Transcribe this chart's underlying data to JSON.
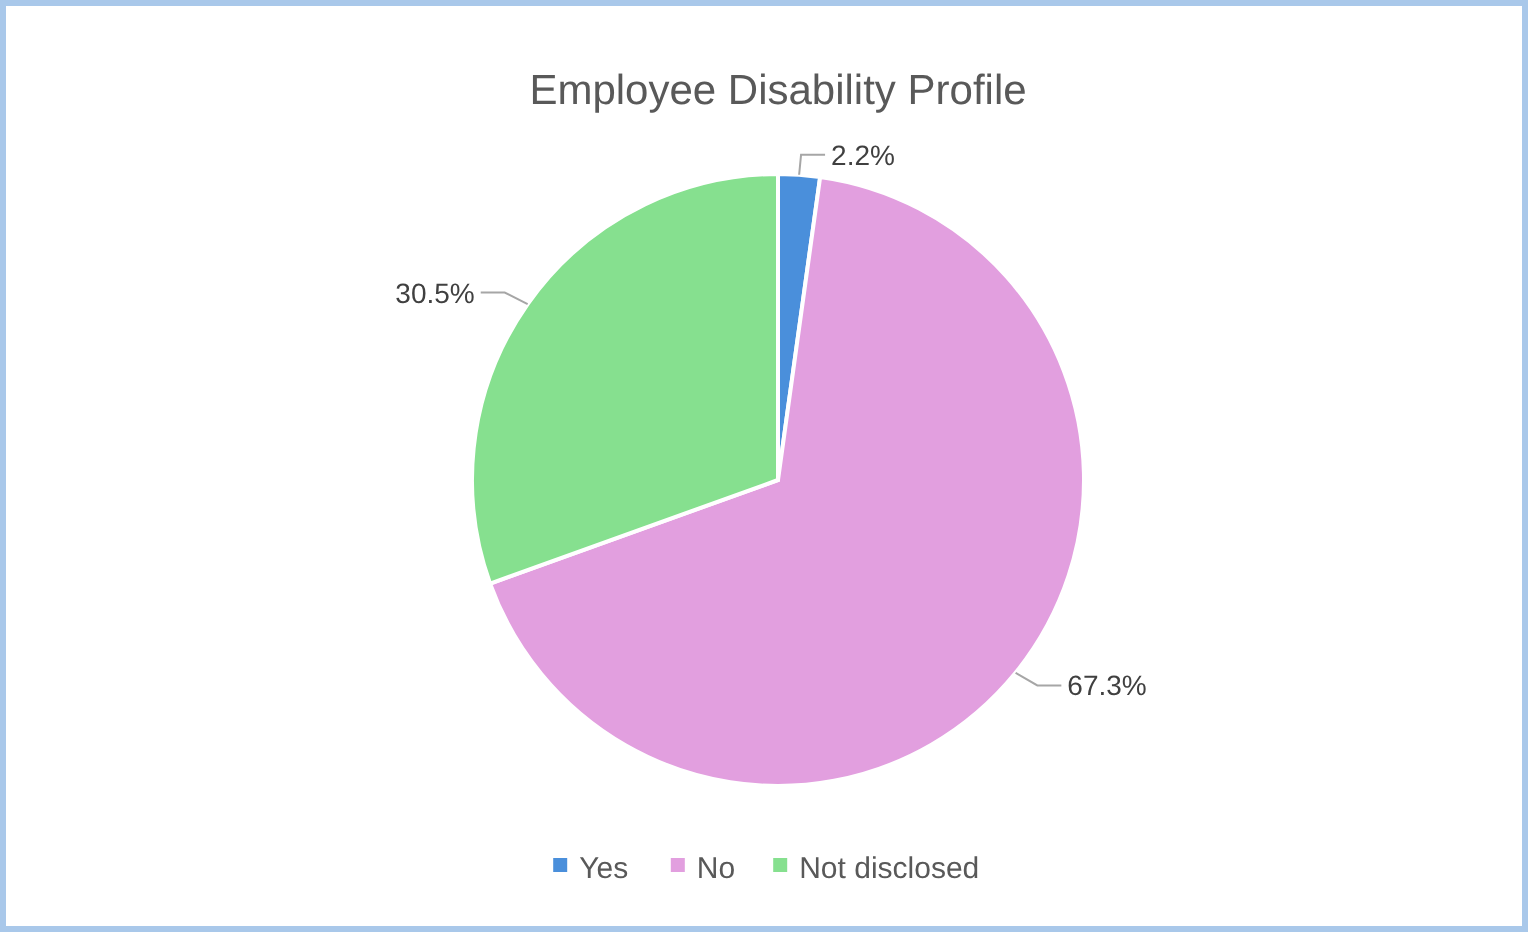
{
  "chart_data": {
    "type": "pie",
    "title": "Employee Disability Profile",
    "categories": [
      "Yes",
      "No",
      "Not disclosed"
    ],
    "values": [
      2.2,
      67.3,
      30.5
    ],
    "colors": [
      "#4a8fdb",
      "#e29fdf",
      "#86e08f"
    ],
    "value_labels": [
      "2.2%",
      "67.3%",
      "30.5%"
    ],
    "legend": "bottom"
  }
}
